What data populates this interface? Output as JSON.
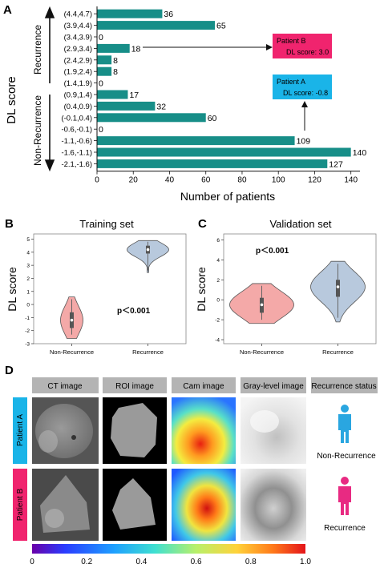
{
  "panelA": {
    "letter": "A",
    "group_top": "Recurrence",
    "group_bottom": "Non-Recurrence",
    "patient_b": {
      "line1": "Patient B",
      "line2": "DL score: 3.0",
      "color": "#f0246e"
    },
    "patient_a": {
      "line1": "Patient A",
      "line2": "DL score: -0.8",
      "color": "#1ab4e8"
    }
  },
  "panelB": {
    "letter": "B"
  },
  "panelC": {
    "letter": "C"
  },
  "panelD": {
    "letter": "D",
    "headers": [
      "CT image",
      "ROI image",
      "Cam image",
      "Gray-level image",
      "Recurrence status"
    ],
    "rows": [
      {
        "label": "Patient A",
        "status": "Non-Recurrence",
        "color": "#1ab4e8"
      },
      {
        "label": "Patient B",
        "status": "Recurrence",
        "color": "#f0246e"
      }
    ],
    "colorbar_ticks": [
      "0",
      "0.2",
      "0.4",
      "0.6",
      "0.8",
      "1.0"
    ]
  },
  "chart_data": [
    {
      "type": "bar",
      "orientation": "horizontal",
      "bar_color": "#178e88",
      "categories": [
        "(4.4,4.7)",
        "(3.9,4.4)",
        "(3.4,3.9)",
        "(2.9,3.4)",
        "(2.4,2.9)",
        "(1.9,2.4)",
        "(1.4,1.9)",
        "(0.9,1.4)",
        "(0.4,0.9)",
        "(-0.1,0.4)",
        "-0.6,-0.1)",
        "-1.1,-0.6)",
        "-1.6,-1.1)",
        "-2.1,-1.6)"
      ],
      "values": [
        36,
        65,
        0,
        18,
        8,
        8,
        0,
        17,
        32,
        60,
        0,
        109,
        140,
        127
      ],
      "xlabel": "Number of patients",
      "ylabel": "DL score",
      "xlim": [
        0,
        145
      ],
      "xticks": [
        0,
        20,
        40,
        60,
        80,
        100,
        120,
        140
      ]
    },
    {
      "type": "violin",
      "title": "Training set",
      "ylabel": "DL score",
      "categories": [
        "Non-Recurrence",
        "Recurrence"
      ],
      "colors": [
        "#f4a9a8",
        "#b8c9dd"
      ],
      "ylim": [
        -3,
        5.4
      ],
      "yticks": [
        -3,
        -2,
        -1,
        0,
        1,
        2,
        3,
        4,
        5
      ],
      "annotation": "p＜0.001",
      "summary": [
        {
          "min": -2.3,
          "q1": -1.8,
          "median": -1.2,
          "q3": -0.6,
          "max": 0.4
        },
        {
          "min": 2.6,
          "q1": 3.9,
          "median": 4.2,
          "q3": 4.5,
          "max": 4.8
        }
      ]
    },
    {
      "type": "violin",
      "title": "Validation set",
      "ylabel": "DL score",
      "categories": [
        "Non-Recurrence",
        "Recurrence"
      ],
      "colors": [
        "#f4a9a8",
        "#b8c9dd"
      ],
      "ylim": [
        -4.4,
        6.6
      ],
      "yticks": [
        -4,
        -2,
        0,
        2,
        4,
        6
      ],
      "annotation": "p＜0.001",
      "summary": [
        {
          "min": -2.0,
          "q1": -1.3,
          "median": -0.5,
          "q3": 0.2,
          "max": 1.4
        },
        {
          "min": -1.8,
          "q1": 0.3,
          "median": 1.3,
          "q3": 2.0,
          "max": 3.6
        }
      ]
    }
  ]
}
